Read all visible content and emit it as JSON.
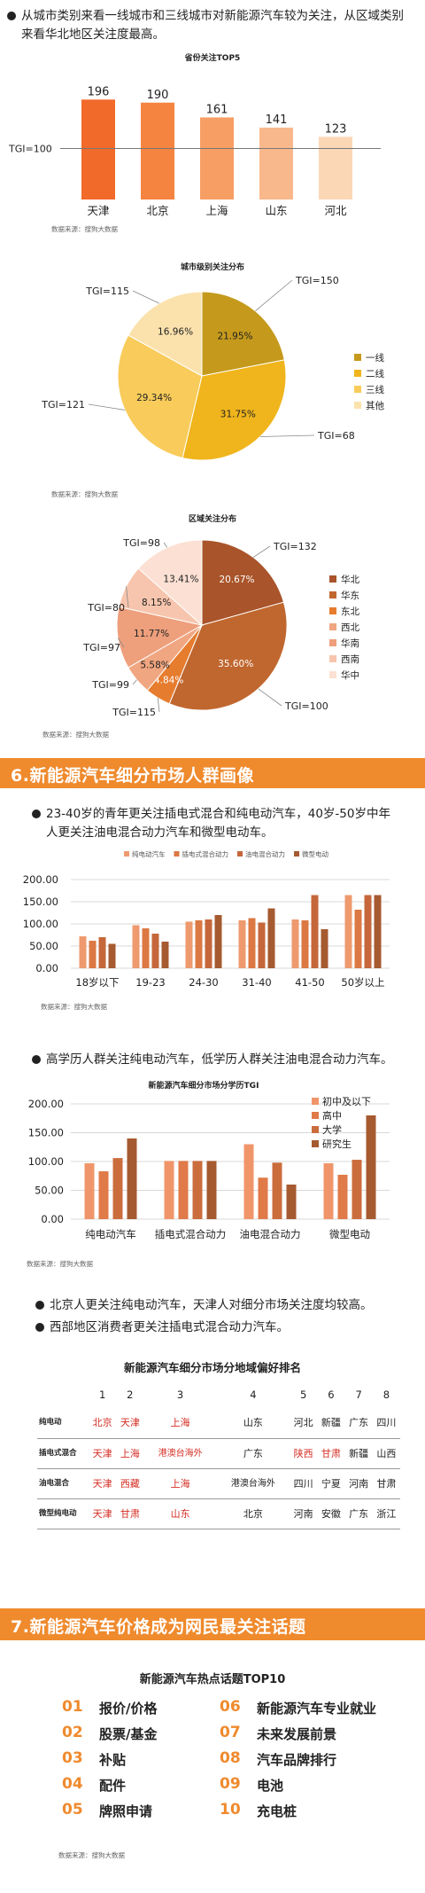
{
  "intro": {
    "text": "从城市类别来看一线城市和三线城市对新能源汽车较为关注，从区域类别来看华北地区关注度最高。"
  },
  "province_chart": {
    "title": "省份关注TOP5",
    "tgi_label": "TGI=100",
    "source": "数据来源：搜狗大数据"
  },
  "city_chart": {
    "title": "城市级别关注分布",
    "source": "数据来源：搜狗大数据"
  },
  "region_chart": {
    "title": "区域关注分布",
    "source": "数据来源：搜狗大数据"
  },
  "section6": {
    "title": "6.新能源汽车细分市场人群画像"
  },
  "age_text": "23-40岁的青年更关注插电式混合和纯电动汽车，40岁-50岁中年人更关注油电混合动力汽车和微型电动车。",
  "age_chart": {
    "source": "数据来源：搜狗大数据"
  },
  "edu_text": "高学历人群关注纯电动汽车，低学历人群关注油电混合动力汽车。",
  "edu_chart": {
    "title": "新能源汽车细分市场分学历TGI",
    "source": "数据来源：搜狗大数据"
  },
  "region_texts": [
    "北京人更关注纯电动汽车，天津人对细分市场关注度均较高。",
    "西部地区消费者更关注插电式混合动力汽车。"
  ],
  "ranking": {
    "title": "新能源汽车细分市场分地域偏好排名",
    "ranks": [
      "1",
      "2",
      "3",
      "4",
      "5",
      "6",
      "7",
      "8"
    ],
    "rows": [
      {
        "label": "纯电动",
        "cells": [
          "北京",
          "天津",
          "上海",
          "山东",
          "河北",
          "新疆",
          "广东",
          "四川"
        ],
        "red": [
          true,
          true,
          true,
          false,
          false,
          false,
          false,
          false
        ]
      },
      {
        "label": "插电式混合",
        "cells": [
          "天津",
          "上海",
          "港澳台海外",
          "广东",
          "陕西",
          "甘肃",
          "新疆",
          "山西"
        ],
        "red": [
          true,
          true,
          true,
          false,
          true,
          true,
          false,
          false
        ]
      },
      {
        "label": "油电混合",
        "cells": [
          "天津",
          "西藏",
          "上海",
          "港澳台海外",
          "四川",
          "宁夏",
          "河南",
          "甘肃"
        ],
        "red": [
          true,
          true,
          true,
          false,
          false,
          false,
          false,
          false
        ]
      },
      {
        "label": "微型纯电动",
        "cells": [
          "天津",
          "甘肃",
          "山东",
          "北京",
          "河南",
          "安徽",
          "广东",
          "浙江"
        ],
        "red": [
          true,
          true,
          true,
          false,
          false,
          false,
          false,
          false
        ]
      }
    ]
  },
  "section7": {
    "title": "7.新能源汽车价格成为网民最关注话题"
  },
  "topics": {
    "title": "新能源汽车热点话题TOP10",
    "source": "数据来源：搜狗大数据",
    "items": [
      {
        "num": "01",
        "label": "报价/价格"
      },
      {
        "num": "02",
        "label": "股票/基金"
      },
      {
        "num": "03",
        "label": "补贴"
      },
      {
        "num": "04",
        "label": "配件"
      },
      {
        "num": "05",
        "label": "牌照申请"
      },
      {
        "num": "06",
        "label": "新能源汽车专业就业"
      },
      {
        "num": "07",
        "label": "未来发展前景"
      },
      {
        "num": "08",
        "label": "汽车品牌排行"
      },
      {
        "num": "09",
        "label": "电池"
      },
      {
        "num": "10",
        "label": "充电桩"
      }
    ]
  },
  "colors": {
    "accent": "#ef8a2d",
    "red": "#d42e24"
  },
  "chart_data": [
    {
      "type": "bar",
      "title": "省份关注TOP5",
      "categories": [
        "天津",
        "北京",
        "上海",
        "山东",
        "河北"
      ],
      "values": [
        196,
        190,
        161,
        141,
        123
      ],
      "colors": [
        "#f26a2a",
        "#f58441",
        "#f79e64",
        "#f9b88c",
        "#fcd7b6"
      ],
      "reference_line": {
        "value": 100,
        "label": "TGI=100"
      }
    },
    {
      "type": "pie",
      "title": "城市级别关注分布",
      "labels": [
        "一线",
        "二线",
        "三线",
        "其他"
      ],
      "values": [
        21.95,
        31.75,
        29.34,
        16.96
      ],
      "value_labels": [
        "21.95%",
        "31.75%",
        "29.34%",
        "16.96%"
      ],
      "tgi_labels": [
        "TGI=150",
        "TGI=68",
        "TGI=121",
        "TGI=115"
      ],
      "colors": [
        "#c59a1c",
        "#f0b51c",
        "#f8cb5a",
        "#fbe2ad"
      ],
      "legend": "right"
    },
    {
      "type": "pie",
      "title": "区域关注分布",
      "labels": [
        "华北",
        "华东",
        "东北",
        "西北",
        "华南",
        "西南",
        "华中"
      ],
      "values": [
        20.67,
        35.6,
        4.84,
        5.58,
        11.77,
        8.15,
        13.41
      ],
      "value_labels": [
        "20.67%",
        "35.60%",
        "4.84%",
        "5.58%",
        "11.77%",
        "8.15%",
        "13.41%"
      ],
      "tgi_labels": [
        "TGI=132",
        "TGI=100",
        "TGI=115",
        "TGI=99",
        "TGI=97",
        "TGI=80",
        "TGI=98"
      ],
      "colors": [
        "#a9542a",
        "#c0672f",
        "#e67c2e",
        "#f0a680",
        "#ee9f7c",
        "#f7c5ad",
        "#fbe0d3"
      ],
      "legend": "right"
    },
    {
      "type": "bar",
      "title": "",
      "categories": [
        "18岁以下",
        "19-23",
        "24-30",
        "31-40",
        "41-50",
        "50岁以上"
      ],
      "series": [
        {
          "name": "纯电动汽车",
          "values": [
            72,
            97,
            105,
            108,
            110,
            165
          ],
          "color": "#ee9a6e"
        },
        {
          "name": "插电式混合动力",
          "values": [
            62,
            90,
            108,
            113,
            108,
            132
          ],
          "color": "#dc7843"
        },
        {
          "name": "油电混合动力",
          "values": [
            70,
            78,
            110,
            103,
            165,
            165
          ],
          "color": "#c5673a"
        },
        {
          "name": "微型电动",
          "values": [
            55,
            60,
            120,
            135,
            88,
            165
          ],
          "color": "#a65a30"
        }
      ],
      "ylim": [
        0,
        200
      ],
      "yticks": [
        "0.00",
        "50.00",
        "100.00",
        "150.00",
        "200.00"
      ],
      "legend": "top"
    },
    {
      "type": "bar",
      "title": "新能源汽车细分市场分学历TGI",
      "categories": [
        "纯电动汽车",
        "插电式混合动力",
        "油电混合动力",
        "微型电动"
      ],
      "series": [
        {
          "name": "初中及以下",
          "values": [
            97,
            101,
            130,
            97
          ],
          "color": "#f0956a"
        },
        {
          "name": "高中",
          "values": [
            83,
            101,
            72,
            77
          ],
          "color": "#e07a48"
        },
        {
          "name": "大学",
          "values": [
            106,
            101,
            98,
            103
          ],
          "color": "#cb6c3d"
        },
        {
          "name": "研究生",
          "values": [
            140,
            101,
            60,
            180
          ],
          "color": "#a65a30"
        }
      ],
      "ylim": [
        0,
        200
      ],
      "yticks": [
        "0.00",
        "50.00",
        "100.00",
        "150.00",
        "200.00"
      ],
      "legend": "right"
    }
  ]
}
